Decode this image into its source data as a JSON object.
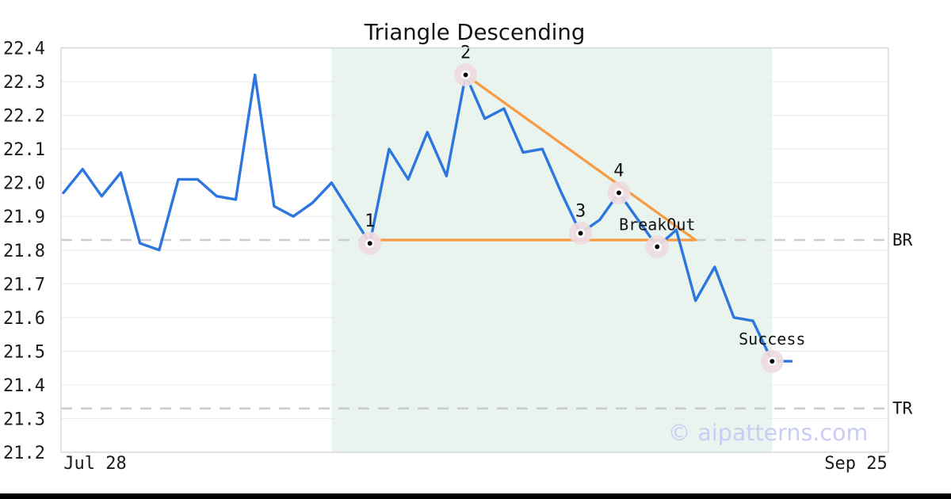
{
  "page": {
    "watermark": "© aipatterns.com"
  },
  "chart_data": {
    "type": "line",
    "title": "Triangle Descending",
    "ylim": [
      21.2,
      22.4
    ],
    "grid": true,
    "series": [
      {
        "color": "#2c76de",
        "values": [
          21.97,
          22.04,
          21.96,
          22.03,
          21.82,
          21.8,
          22.01,
          22.01,
          21.96,
          21.95,
          22.32,
          21.93,
          21.9,
          21.94,
          22.0,
          21.91,
          21.82,
          22.1,
          22.01,
          22.15,
          22.02,
          22.32,
          22.19,
          22.22,
          22.09,
          22.1,
          21.97,
          21.85,
          21.89,
          21.97,
          21.89,
          21.81,
          21.86,
          21.65,
          21.75,
          21.6,
          21.59,
          21.47,
          21.47
        ]
      }
    ],
    "y_ticks": [
      {
        "label": "22.4",
        "value": 22.4
      },
      {
        "label": "22.3",
        "value": 22.3
      },
      {
        "label": "22.2",
        "value": 22.2
      },
      {
        "label": "22.1",
        "value": 22.1
      },
      {
        "label": "22.0",
        "value": 22.0
      },
      {
        "label": "21.9",
        "value": 21.9
      },
      {
        "label": "21.8",
        "value": 21.8
      },
      {
        "label": "21.7",
        "value": 21.7
      },
      {
        "label": "21.6",
        "value": 21.6
      },
      {
        "label": "21.5",
        "value": 21.5
      },
      {
        "label": "21.4",
        "value": 21.4
      },
      {
        "label": "21.3",
        "value": 21.3
      },
      {
        "label": "21.2",
        "value": 21.2
      }
    ],
    "x_ticks": [
      {
        "label": "Jul 28"
      },
      {
        "label": "Sep 25"
      }
    ],
    "levels": [
      {
        "label": "BR",
        "value": 21.83
      },
      {
        "label": "TR",
        "value": 21.33
      }
    ],
    "pattern": {
      "shade": {
        "from_index": 14,
        "to_index": 37,
        "color": "#e9f4ef"
      },
      "triangle": {
        "color": "#f79a43",
        "support": {
          "from_index": 16,
          "to_index": 33,
          "value": 21.83
        },
        "resistance": {
          "from_index": 21,
          "from_value": 22.32,
          "to_index": 33,
          "to_value": 21.83
        }
      },
      "annotations": [
        {
          "label": "1",
          "index": 16,
          "value": 21.82
        },
        {
          "label": "2",
          "index": 21,
          "value": 22.32
        },
        {
          "label": "3",
          "index": 27,
          "value": 21.85
        },
        {
          "label": "4",
          "index": 29,
          "value": 21.97
        },
        {
          "label": "BreakOut",
          "index": 31,
          "value": 21.81
        },
        {
          "label": "Success",
          "index": 37,
          "value": 21.47
        }
      ],
      "marker": {
        "halo_color": "#eedbdf",
        "dot_color": "#000000"
      }
    },
    "colors": {
      "grid": "#ebebeb",
      "level_dash": "#cccccc",
      "border": "#d9d9d9"
    }
  }
}
